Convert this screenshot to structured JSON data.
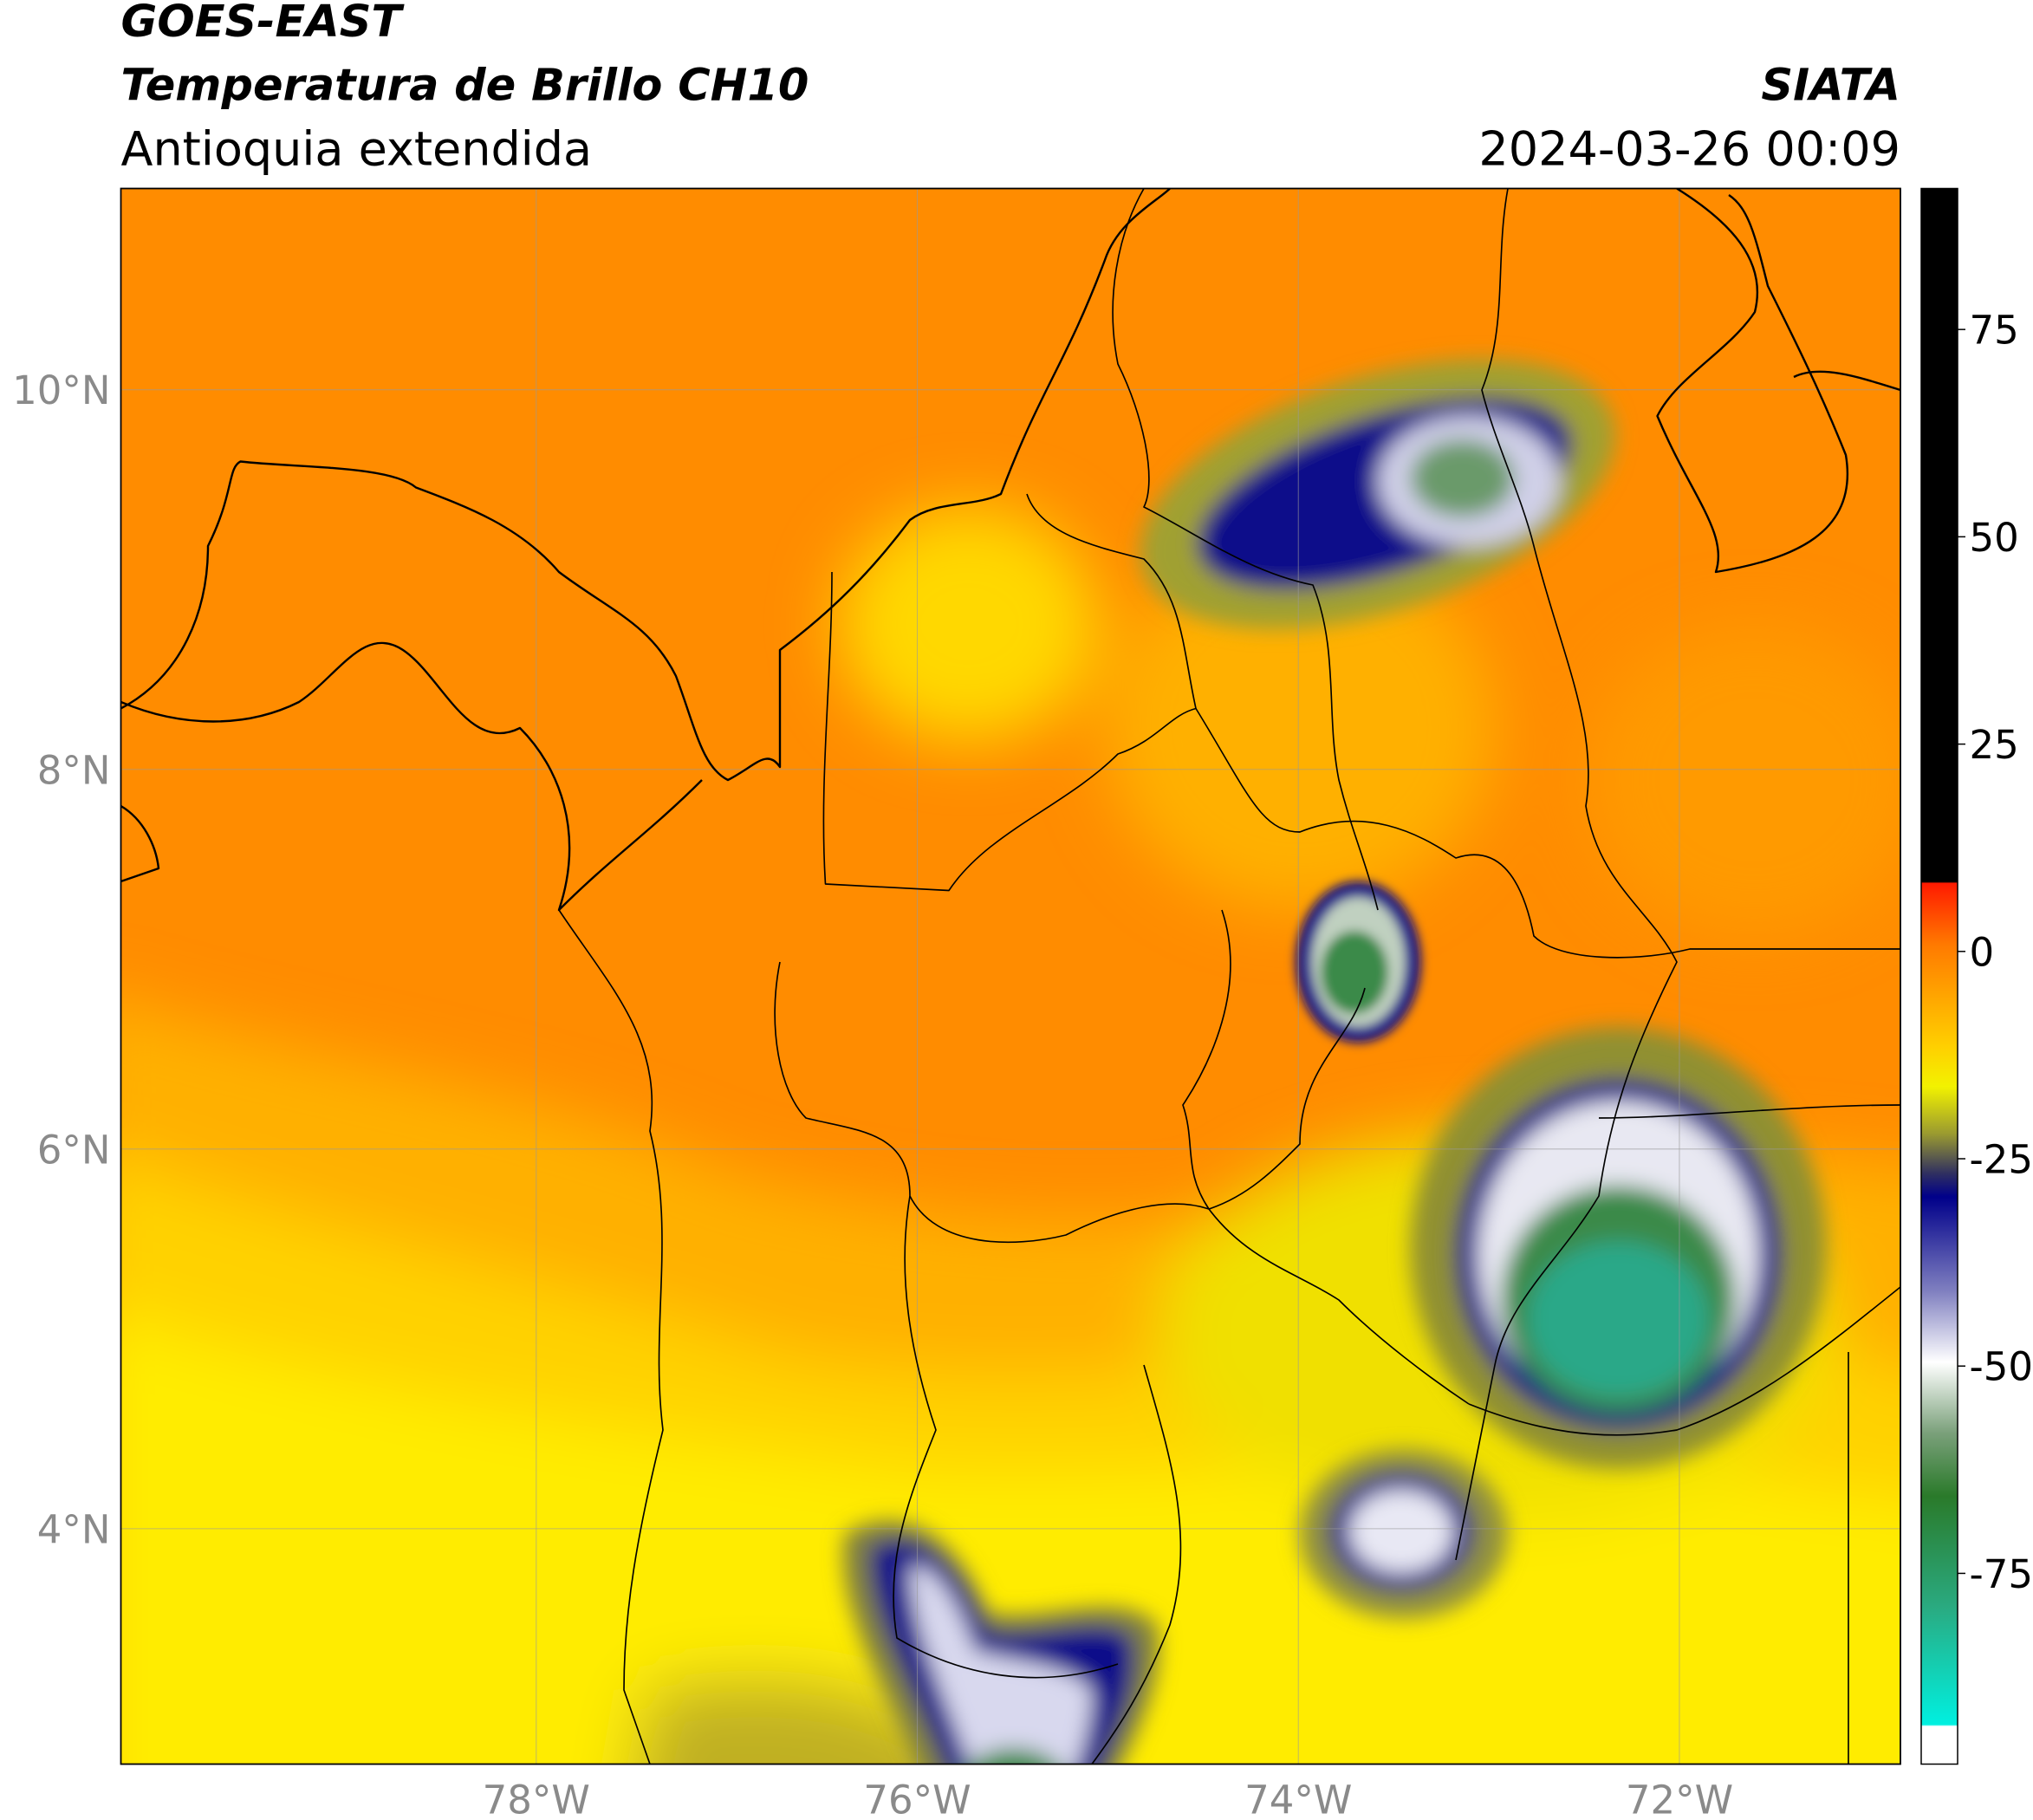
{
  "header": {
    "title": "GOES-EAST",
    "product": "Temperatura de Brillo CH10",
    "region": "Antioquia extendida",
    "source": "SIATA",
    "datetime": "2024-03-26 00:09"
  },
  "map": {
    "latlim": [
      2.76,
      11.06
    ],
    "lonlim": [
      -80.18,
      -70.84
    ],
    "grid": true,
    "lat_ticks": [
      {
        "value": 4,
        "label": "4°N"
      },
      {
        "value": 6,
        "label": "6°N"
      },
      {
        "value": 8,
        "label": "8°N"
      },
      {
        "value": 10,
        "label": "10°N"
      }
    ],
    "lon_ticks": [
      {
        "value": -78,
        "label": "78°W"
      },
      {
        "value": -76,
        "label": "76°W"
      },
      {
        "value": -74,
        "label": "74°W"
      },
      {
        "value": -72,
        "label": "72°W"
      }
    ]
  },
  "colorbar": {
    "lim": [
      -98,
      92
    ],
    "ticks": [
      75,
      50,
      25,
      0,
      -25,
      -50,
      -75
    ]
  }
}
